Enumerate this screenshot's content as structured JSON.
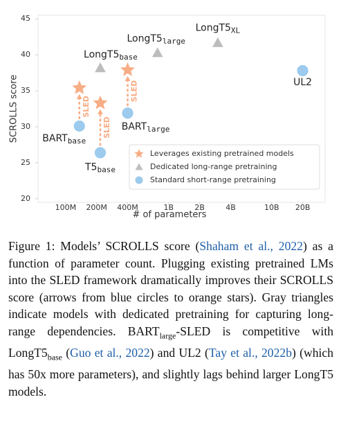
{
  "chart_data": {
    "type": "scatter",
    "x_label": "# of parameters",
    "y_label": "SCROLLS score",
    "xscale": "log",
    "xlim": [
      54000000,
      33000000000
    ],
    "xticks": [
      {
        "value": 100000000,
        "label": "100M"
      },
      {
        "value": 200000000,
        "label": "200M"
      },
      {
        "value": 400000000,
        "label": "400M"
      },
      {
        "value": 1000000000,
        "label": "1B"
      },
      {
        "value": 2000000000,
        "label": "2B"
      },
      {
        "value": 4000000000,
        "label": "4B"
      },
      {
        "value": 10000000000,
        "label": "10B"
      },
      {
        "value": 20000000000,
        "label": "20B"
      }
    ],
    "ylim": [
      19.5,
      45.5
    ],
    "yticks": [
      20,
      25,
      30,
      35,
      40,
      45
    ],
    "legend": "lower right",
    "series": [
      {
        "name": "Leverages existing pretrained models",
        "marker": "star",
        "color": "#f7ad85",
        "x": [
          136000000,
          217000000,
          400000000
        ],
        "values": [
          35.4,
          33.3,
          37.9
        ]
      },
      {
        "name": "Dedicated long-range pretraining",
        "marker": "triangle",
        "color": "#bdbdbd",
        "x": [
          217000000,
          780000000,
          3000000000
        ],
        "values": [
          38.2,
          40.3,
          41.7
        ],
        "point_labels": [
          {
            "text": "LongT5",
            "sub": "base"
          },
          {
            "text": "LongT5",
            "sub": "large"
          },
          {
            "text": "LongT5",
            "sub": "XL"
          }
        ]
      },
      {
        "name": "Standard short-range pretraining",
        "marker": "circle",
        "color": "#9ccbee",
        "x": [
          136000000,
          217000000,
          400000000,
          20000000000
        ],
        "values": [
          30.1,
          26.4,
          31.9,
          37.8
        ],
        "point_labels": [
          {
            "text": "BART",
            "sub": "base"
          },
          {
            "text": "T5",
            "sub": "base"
          },
          {
            "text": "BART",
            "sub": "large"
          },
          {
            "text": "UL2"
          }
        ]
      }
    ],
    "arrows": [
      {
        "label": "SLED"
      },
      {
        "label": "SLED"
      },
      {
        "label": "SLED"
      }
    ]
  },
  "caption": {
    "parts": [
      {
        "kind": "plain",
        "text": "Figure 1: Models’ SCROLLS score ("
      },
      {
        "kind": "link",
        "text": "Shaham et al., 2022"
      },
      {
        "kind": "plain",
        "text": ") as a function of parameter count. Plugging existing pretrained LMs into the SLED framework dramatically improves their SCROLLS score (arrows from blue circles to orange stars). Gray triangles indicate models with dedicated pretraining for capturing long-range dependencies. BART"
      },
      {
        "kind": "sub",
        "text": "large"
      },
      {
        "kind": "plain",
        "text": "-SLED is competitive with LongT5"
      },
      {
        "kind": "sub",
        "text": "base"
      },
      {
        "kind": "plain",
        "text": " ("
      },
      {
        "kind": "link",
        "text": "Guo et al., 2022"
      },
      {
        "kind": "plain",
        "text": ") and UL2 ("
      },
      {
        "kind": "link",
        "text": "Tay et al., 2022b"
      },
      {
        "kind": "plain",
        "text": ") (which has 50x more parameters), and slightly lags behind larger LongT5 models."
      }
    ]
  }
}
